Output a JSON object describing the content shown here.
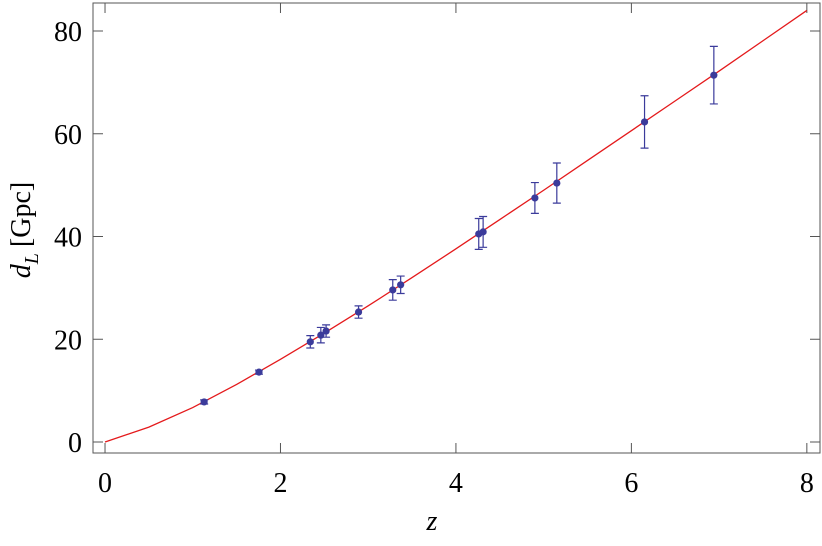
{
  "chart_data": {
    "type": "scatter",
    "xlabel": "z",
    "ylabel": {
      "base": "d",
      "sub": "L",
      "unit": "[Gpc]"
    },
    "xlim": [
      -0.137,
      8.15
    ],
    "ylim": [
      -2.14,
      85.45
    ],
    "xticks": [
      0,
      2,
      4,
      6,
      8
    ],
    "yticks": [
      0,
      20,
      40,
      60,
      80
    ],
    "series": [
      {
        "type": "line",
        "color": "#e41a1c",
        "x": [
          0,
          0.5,
          1,
          1.5,
          2,
          2.5,
          3,
          3.5,
          4,
          4.5,
          5,
          5.5,
          6,
          6.5,
          7,
          7.5,
          8
        ],
        "values": [
          0,
          2.9,
          6.7,
          11.2,
          16.1,
          21.2,
          26.5,
          32.0,
          37.6,
          43.3,
          49.0,
          54.8,
          60.6,
          66.4,
          72.2,
          78.1,
          84.0
        ]
      },
      {
        "type": "scatter",
        "color": "#3b3b9b",
        "x": [
          1.13,
          1.755,
          2.34,
          2.46,
          2.52,
          2.89,
          3.28,
          3.37,
          4.26,
          4.31,
          4.9,
          5.15,
          6.15,
          6.94
        ],
        "values": [
          7.8,
          13.6,
          19.5,
          20.8,
          21.6,
          25.3,
          29.6,
          30.6,
          40.5,
          40.9,
          47.5,
          50.4,
          62.3,
          71.4
        ],
        "errors": [
          0.4,
          0.4,
          1.2,
          1.5,
          1.2,
          1.2,
          2.0,
          1.7,
          3.0,
          3.0,
          3.0,
          3.9,
          5.1,
          5.6
        ]
      }
    ]
  }
}
